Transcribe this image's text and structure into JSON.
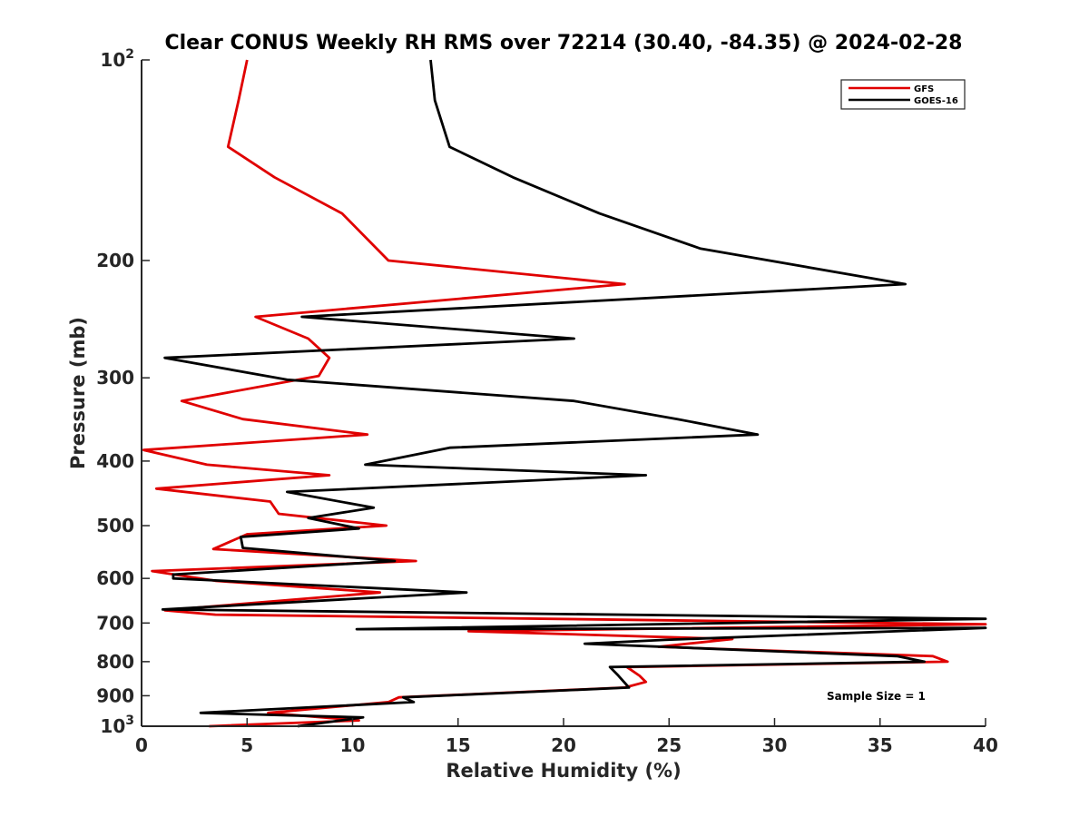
{
  "chart_data": {
    "type": "line",
    "title": "Clear CONUS Weekly RH RMS over 72214 (30.40, -84.35) @ 2024-02-28",
    "xlabel": "Relative Humidity (%)",
    "ylabel": "Pressure (mb)",
    "xlim": [
      0,
      40
    ],
    "ylim": [
      100,
      1000
    ],
    "yscale": "log",
    "y_reversed": true,
    "xticks": [
      0,
      5,
      10,
      15,
      20,
      25,
      30,
      35,
      40
    ],
    "xtick_labels": [
      "0",
      "5",
      "10",
      "15",
      "20",
      "25",
      "30",
      "35",
      "40"
    ],
    "yticks": [
      100,
      200,
      300,
      400,
      500,
      600,
      700,
      800,
      900,
      1000
    ],
    "ytick_labels": [
      {
        "base": "10",
        "exp": "2"
      },
      {
        "base": "200",
        "exp": ""
      },
      {
        "base": "300",
        "exp": ""
      },
      {
        "base": "400",
        "exp": ""
      },
      {
        "base": "500",
        "exp": ""
      },
      {
        "base": "600",
        "exp": ""
      },
      {
        "base": "700",
        "exp": ""
      },
      {
        "base": "800",
        "exp": ""
      },
      {
        "base": "900",
        "exp": ""
      },
      {
        "base": "10",
        "exp": "3"
      }
    ],
    "grid": false,
    "legend_position": "top-right",
    "series": [
      {
        "name": "GFS",
        "color": "#e00000",
        "points": [
          [
            5.0,
            100
          ],
          [
            4.6,
            115
          ],
          [
            4.1,
            135
          ],
          [
            6.3,
            150
          ],
          [
            9.5,
            170
          ],
          [
            11.7,
            200
          ],
          [
            22.9,
            217
          ],
          [
            5.4,
            243
          ],
          [
            7.9,
            262
          ],
          [
            8.9,
            280
          ],
          [
            8.4,
            298
          ],
          [
            1.9,
            325
          ],
          [
            4.8,
            346
          ],
          [
            10.7,
            365
          ],
          [
            0.1,
            385
          ],
          [
            3.1,
            405
          ],
          [
            8.9,
            420
          ],
          [
            0.7,
            440
          ],
          [
            6.1,
            460
          ],
          [
            6.5,
            480
          ],
          [
            11.6,
            500
          ],
          [
            5.0,
            515
          ],
          [
            3.4,
            542
          ],
          [
            13.0,
            565
          ],
          [
            0.5,
            585
          ],
          [
            3.5,
            605
          ],
          [
            11.3,
            630
          ],
          [
            3.6,
            660
          ],
          [
            1.1,
            670
          ],
          [
            3.5,
            680
          ],
          [
            40,
            703
          ],
          [
            15.5,
            720
          ],
          [
            28.0,
            740
          ],
          [
            24.5,
            760
          ],
          [
            37.5,
            785
          ],
          [
            38.2,
            800
          ],
          [
            23.0,
            815
          ],
          [
            23.6,
            840
          ],
          [
            23.9,
            858
          ],
          [
            22.9,
            875
          ],
          [
            12.2,
            905
          ],
          [
            11.7,
            920
          ],
          [
            6.0,
            955
          ],
          [
            10.3,
            980
          ],
          [
            3.2,
            1000
          ]
        ]
      },
      {
        "name": "GOES-16",
        "color": "#000000",
        "points": [
          [
            13.7,
            100
          ],
          [
            13.9,
            115
          ],
          [
            14.6,
            135
          ],
          [
            17.6,
            150
          ],
          [
            21.7,
            170
          ],
          [
            26.5,
            192
          ],
          [
            36.2,
            217
          ],
          [
            7.6,
            243
          ],
          [
            20.5,
            262
          ],
          [
            1.1,
            280
          ],
          [
            6.9,
            302
          ],
          [
            20.5,
            325
          ],
          [
            25.4,
            346
          ],
          [
            29.2,
            365
          ],
          [
            14.6,
            382
          ],
          [
            10.6,
            405
          ],
          [
            23.9,
            420
          ],
          [
            6.9,
            445
          ],
          [
            11.0,
            470
          ],
          [
            7.9,
            487
          ],
          [
            10.3,
            505
          ],
          [
            4.7,
            520
          ],
          [
            4.8,
            540
          ],
          [
            12.0,
            565
          ],
          [
            1.5,
            592
          ],
          [
            1.5,
            600
          ],
          [
            15.4,
            630
          ],
          [
            1.0,
            668
          ],
          [
            40,
            690
          ],
          [
            10.2,
            715
          ],
          [
            40,
            712
          ],
          [
            24.8,
            742
          ],
          [
            21.0,
            752
          ],
          [
            35.8,
            785
          ],
          [
            37.1,
            800
          ],
          [
            22.2,
            815
          ],
          [
            22.6,
            840
          ],
          [
            23.1,
            875
          ],
          [
            12.4,
            905
          ],
          [
            12.9,
            920
          ],
          [
            2.8,
            955
          ],
          [
            10.5,
            970
          ],
          [
            7.4,
            1000
          ]
        ]
      }
    ],
    "annotation": "Sample Size = 1"
  }
}
